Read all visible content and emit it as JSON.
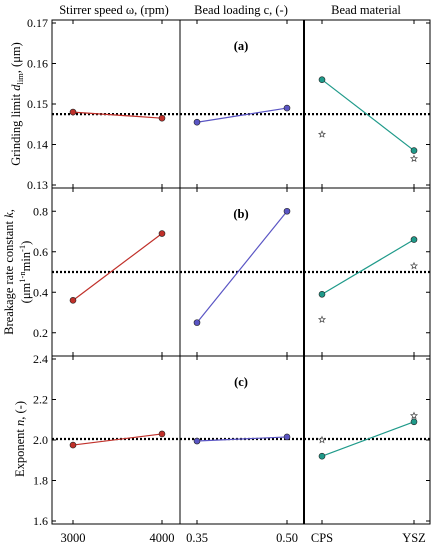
{
  "chart_data": {
    "type": "line",
    "column_headers": [
      "Stirrer speed ω, (rpm)",
      "Bead loading c, (-)",
      "Bead material"
    ],
    "columns": [
      {
        "name": "stirrer-speed",
        "tick_labels": [
          "3000",
          "4000"
        ]
      },
      {
        "name": "bead-loading",
        "tick_labels": [
          "0.35",
          "0.50"
        ]
      },
      {
        "name": "bead-material",
        "tick_labels": [
          "CPS",
          "YSZ"
        ]
      }
    ],
    "panels": [
      {
        "label": "(a)",
        "ylabel": "Grinding limit d_lim, (μm)",
        "ylabel_main": "Grinding limit ",
        "ylabel_d": "d",
        "ylabel_sub": "lim",
        "ylabel_unit": ", (μm)",
        "ylim": [
          0.13,
          0.17
        ],
        "yticks": [
          "0.13",
          "0.14",
          "0.15",
          "0.16",
          "0.17"
        ],
        "reference": 0.1475,
        "series": [
          {
            "column": 0,
            "color": "#c0302a",
            "values": [
              0.148,
              0.1465
            ]
          },
          {
            "column": 1,
            "color": "#5a55c4",
            "values": [
              0.1455,
              0.149
            ]
          },
          {
            "column": 2,
            "color": "#1f9a8a",
            "values": [
              0.156,
              0.1385
            ]
          }
        ],
        "stars": [
          {
            "column": 2,
            "points": [
              [
                0,
                0.1425
              ],
              [
                1,
                0.1365
              ]
            ]
          }
        ]
      },
      {
        "label": "(b)",
        "ylabel": "Breakage rate constant k, (μm^(1-n) min^-1)",
        "ylabel_line1": "Breakage rate constant ",
        "ylabel_k": "k",
        "ylabel_line1_end": ",",
        "ylabel_line2_a": "(μm",
        "ylabel_line2_exp1": "1-n",
        "ylabel_line2_b": "min",
        "ylabel_line2_exp2": "-1",
        "ylabel_line2_c": ")",
        "ylim": [
          0.1,
          0.9
        ],
        "yticks": [
          "0.2",
          "0.4",
          "0.6",
          "0.8"
        ],
        "reference": 0.5,
        "series": [
          {
            "column": 0,
            "color": "#c0302a",
            "values": [
              0.36,
              0.69
            ]
          },
          {
            "column": 1,
            "color": "#5a55c4",
            "values": [
              0.25,
              0.8
            ]
          },
          {
            "column": 2,
            "color": "#1f9a8a",
            "values": [
              0.39,
              0.66
            ]
          }
        ],
        "stars": [
          {
            "column": 2,
            "points": [
              [
                0,
                0.265
              ],
              [
                1,
                0.53
              ]
            ]
          }
        ]
      },
      {
        "label": "(c)",
        "ylabel": "Exponent n, (-)",
        "ylabel_main": "Exponent ",
        "ylabel_n": "n",
        "ylabel_unit": ", (-)",
        "ylim": [
          1.6,
          2.4
        ],
        "yticks": [
          "1.6",
          "1.8",
          "2.0",
          "2.2",
          "2.4"
        ],
        "reference": 2.005,
        "series": [
          {
            "column": 0,
            "color": "#c0302a",
            "values": [
              1.975,
              2.03
            ]
          },
          {
            "column": 1,
            "color": "#5a55c4",
            "values": [
              1.995,
              2.015
            ]
          },
          {
            "column": 2,
            "color": "#1f9a8a",
            "values": [
              1.92,
              2.09
            ]
          }
        ],
        "stars": [
          {
            "column": 2,
            "points": [
              [
                0,
                2.0
              ],
              [
                1,
                2.12
              ]
            ]
          }
        ]
      }
    ]
  }
}
